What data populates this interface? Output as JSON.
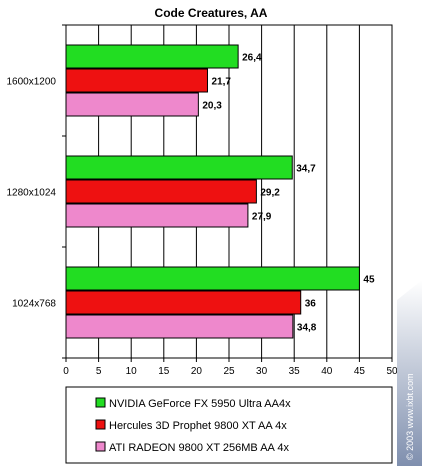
{
  "chart_data": {
    "type": "bar",
    "orientation": "horizontal",
    "title": "Code Creatures, AA",
    "categories": [
      "1600x1200",
      "1280x1024",
      "1024x768"
    ],
    "series": [
      {
        "name": "NVIDIA GeForce FX 5950 Ultra AA4x",
        "color": "#22dd22",
        "values": [
          26.4,
          34.7,
          45
        ],
        "labels": [
          "26,4",
          "34,7",
          "45"
        ]
      },
      {
        "name": "Hercules 3D Prophet 9800 XT AA 4x",
        "color": "#ee1111",
        "values": [
          21.7,
          29.2,
          36
        ],
        "labels": [
          "21,7",
          "29,2",
          "36"
        ]
      },
      {
        "name": "ATI RADEON 9800 XT 256MB AA 4x",
        "color": "#ee88cc",
        "values": [
          20.3,
          27.9,
          34.8
        ],
        "labels": [
          "20,3",
          "27,9",
          "34,8"
        ]
      }
    ],
    "xlim": [
      0,
      50
    ],
    "xticks": [
      0,
      5,
      10,
      15,
      20,
      25,
      30,
      35,
      40,
      45,
      50
    ],
    "grid": true,
    "legend_position": "bottom",
    "xlabel": "",
    "ylabel": ""
  },
  "watermark": "© 2003 www.ixbt.com"
}
